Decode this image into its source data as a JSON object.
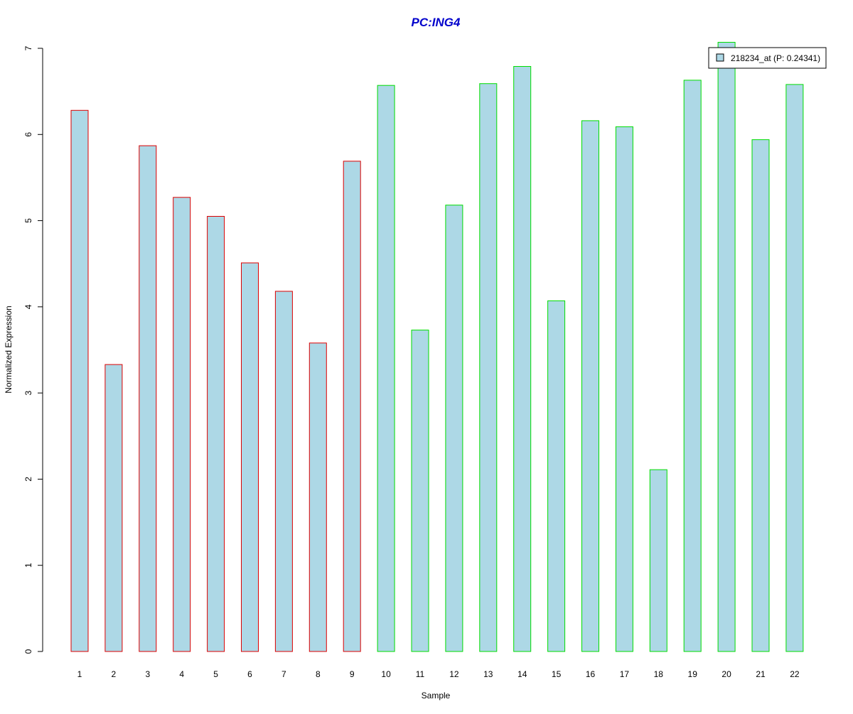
{
  "chart_data": {
    "type": "bar",
    "title": "PC:ING4",
    "xlabel": "Sample",
    "ylabel": "Normalized Expression",
    "categories": [
      "1",
      "2",
      "3",
      "4",
      "5",
      "6",
      "7",
      "8",
      "9",
      "10",
      "11",
      "12",
      "13",
      "14",
      "15",
      "16",
      "17",
      "18",
      "19",
      "20",
      "21",
      "22"
    ],
    "values": [
      6.28,
      3.33,
      5.87,
      5.27,
      5.05,
      4.51,
      4.18,
      3.58,
      5.69,
      6.57,
      3.73,
      5.18,
      6.59,
      6.79,
      4.07,
      6.16,
      6.09,
      2.11,
      6.63,
      7.07,
      5.94,
      6.58
    ],
    "groups": [
      1,
      1,
      1,
      1,
      1,
      1,
      1,
      1,
      1,
      2,
      2,
      2,
      2,
      2,
      2,
      2,
      2,
      2,
      2,
      2,
      2,
      2
    ],
    "yticks": [
      0,
      1,
      2,
      3,
      4,
      5,
      6,
      7
    ],
    "ylim": [
      0,
      7
    ],
    "grid": false,
    "legend": {
      "label": "218234_at (P: 0.24341)",
      "position": "top-right"
    },
    "colors": {
      "bar_fill": "#add8e6",
      "group_1_border": "#dd0000",
      "group_2_border": "#00dd00",
      "title": "#0000cc",
      "axis": "#000000"
    }
  }
}
